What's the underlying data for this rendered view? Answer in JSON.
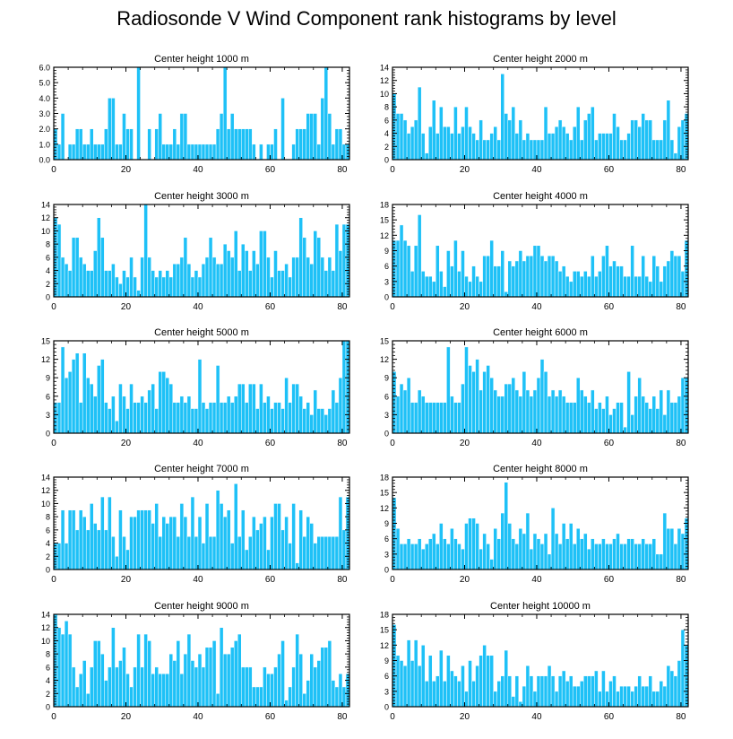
{
  "title": "Radiosonde V Wind Component rank histograms by level",
  "colors": {
    "bar_fill": "#1ec1f7",
    "bar_stroke": "#ffffff",
    "axis": "#000000"
  },
  "chart_data": [
    {
      "type": "bar",
      "title": "Center height 1000 m",
      "xlabel": "",
      "ylabel": "",
      "xlim": [
        0,
        82
      ],
      "ylim": [
        0,
        6
      ],
      "xticks": [
        "0",
        "20",
        "40",
        "60",
        "80"
      ],
      "yticks": [
        "0.0",
        "1.0",
        "2.0",
        "3.0",
        "4.0",
        "5.0",
        "6.0"
      ],
      "values": [
        2,
        1,
        3,
        0,
        1,
        1,
        2,
        2,
        1,
        1,
        2,
        1,
        1,
        1,
        2,
        4,
        4,
        1,
        1,
        3,
        2,
        2,
        0,
        6,
        0,
        0,
        2,
        0,
        2,
        3,
        1,
        1,
        1,
        2,
        1,
        3,
        3,
        1,
        1,
        1,
        1,
        1,
        1,
        1,
        1,
        2,
        3,
        6,
        2,
        3,
        2,
        2,
        2,
        2,
        2,
        1,
        0,
        1,
        0,
        1,
        1,
        2,
        0,
        4,
        0,
        0,
        1,
        2,
        2,
        2,
        3,
        3,
        3,
        1,
        4,
        6,
        3,
        1,
        2,
        2,
        1,
        1
      ]
    },
    {
      "type": "bar",
      "title": "Center height 2000 m",
      "xlabel": "",
      "ylabel": "",
      "xlim": [
        0,
        82
      ],
      "ylim": [
        0,
        14
      ],
      "xticks": [
        "0",
        "20",
        "40",
        "60",
        "80"
      ],
      "yticks": [
        "0",
        "2",
        "4",
        "6",
        "8",
        "10",
        "12",
        "14"
      ],
      "values": [
        10,
        7,
        7,
        6,
        4,
        5,
        6,
        11,
        4,
        1,
        5,
        9,
        4,
        8,
        5,
        5,
        4,
        8,
        4,
        5,
        8,
        5,
        4,
        3,
        6,
        3,
        3,
        4,
        5,
        3,
        13,
        7,
        6,
        8,
        4,
        6,
        3,
        4,
        3,
        3,
        3,
        3,
        8,
        4,
        4,
        5,
        6,
        5,
        4,
        3,
        5,
        8,
        3,
        6,
        7,
        8,
        3,
        4,
        4,
        4,
        4,
        7,
        5,
        3,
        3,
        4,
        6,
        6,
        5,
        7,
        6,
        6,
        3,
        3,
        3,
        6,
        9,
        3,
        1,
        5,
        6,
        7
      ]
    },
    {
      "type": "bar",
      "title": "Center height 3000 m",
      "xlabel": "",
      "ylabel": "",
      "xlim": [
        0,
        82
      ],
      "ylim": [
        0,
        14
      ],
      "xticks": [
        "0",
        "20",
        "40",
        "60",
        "80"
      ],
      "yticks": [
        "0",
        "2",
        "4",
        "6",
        "8",
        "10",
        "12",
        "14"
      ],
      "values": [
        12,
        11,
        6,
        5,
        4,
        9,
        9,
        6,
        5,
        4,
        4,
        7,
        12,
        9,
        4,
        4,
        5,
        3,
        2,
        4,
        3,
        6,
        3,
        1,
        6,
        14,
        6,
        4,
        3,
        4,
        3,
        4,
        3,
        5,
        5,
        6,
        9,
        5,
        3,
        4,
        3,
        5,
        6,
        9,
        6,
        5,
        5,
        8,
        7,
        6,
        10,
        4,
        8,
        7,
        4,
        7,
        5,
        10,
        10,
        6,
        3,
        7,
        4,
        4,
        5,
        3,
        6,
        6,
        12,
        9,
        6,
        5,
        10,
        9,
        6,
        4,
        6,
        4,
        11,
        7,
        11,
        11
      ]
    },
    {
      "type": "bar",
      "title": "Center height 4000 m",
      "xlabel": "",
      "ylabel": "",
      "xlim": [
        0,
        82
      ],
      "ylim": [
        0,
        18
      ],
      "xticks": [
        "0",
        "20",
        "40",
        "60",
        "80"
      ],
      "yticks": [
        "0",
        "3",
        "6",
        "9",
        "12",
        "15",
        "18"
      ],
      "values": [
        11,
        11,
        14,
        11,
        10,
        5,
        10,
        16,
        5,
        4,
        4,
        3,
        10,
        5,
        2,
        9,
        6,
        11,
        5,
        9,
        4,
        3,
        6,
        4,
        3,
        8,
        8,
        11,
        6,
        6,
        9,
        1,
        7,
        6,
        7,
        9,
        7,
        8,
        8,
        10,
        10,
        8,
        7,
        8,
        8,
        7,
        5,
        6,
        4,
        3,
        5,
        5,
        4,
        5,
        4,
        8,
        4,
        5,
        8,
        10,
        6,
        7,
        6,
        6,
        4,
        4,
        10,
        4,
        4,
        8,
        4,
        3,
        8,
        6,
        3,
        6,
        7,
        9,
        8,
        8,
        5,
        11
      ]
    },
    {
      "type": "bar",
      "title": "Center height 5000 m",
      "xlabel": "",
      "ylabel": "",
      "xlim": [
        0,
        82
      ],
      "ylim": [
        0,
        15
      ],
      "xticks": [
        "0",
        "20",
        "40",
        "60",
        "80"
      ],
      "yticks": [
        "0",
        "3",
        "6",
        "9",
        "12",
        "15"
      ],
      "values": [
        5,
        5,
        14,
        9,
        10,
        12,
        13,
        5,
        13,
        9,
        8,
        6,
        11,
        12,
        5,
        4,
        6,
        2,
        8,
        6,
        4,
        8,
        5,
        5,
        6,
        5,
        7,
        8,
        4,
        10,
        10,
        9,
        8,
        5,
        5,
        6,
        5,
        6,
        4,
        4,
        12,
        5,
        4,
        5,
        5,
        11,
        5,
        5,
        6,
        5,
        6,
        8,
        8,
        5,
        8,
        8,
        4,
        8,
        5,
        6,
        4,
        5,
        5,
        4,
        9,
        5,
        8,
        8,
        6,
        4,
        5,
        3,
        7,
        4,
        4,
        3,
        4,
        7,
        5,
        9,
        15,
        15
      ]
    },
    {
      "type": "bar",
      "title": "Center height 6000 m",
      "xlabel": "",
      "ylabel": "",
      "xlim": [
        0,
        82
      ],
      "ylim": [
        0,
        15
      ],
      "xticks": [
        "0",
        "20",
        "40",
        "60",
        "80"
      ],
      "yticks": [
        "0",
        "3",
        "6",
        "9",
        "12",
        "15"
      ],
      "values": [
        10,
        6,
        8,
        7,
        9,
        5,
        5,
        7,
        6,
        5,
        5,
        5,
        5,
        5,
        5,
        14,
        6,
        5,
        5,
        8,
        14,
        11,
        10,
        12,
        7,
        10,
        11,
        9,
        7,
        6,
        6,
        8,
        8,
        9,
        7,
        6,
        10,
        7,
        6,
        7,
        9,
        12,
        10,
        6,
        7,
        6,
        7,
        6,
        5,
        5,
        5,
        9,
        7,
        6,
        5,
        7,
        4,
        5,
        4,
        6,
        3,
        4,
        5,
        5,
        1,
        10,
        3,
        6,
        9,
        6,
        5,
        4,
        6,
        4,
        7,
        3,
        7,
        5,
        5,
        6,
        9,
        9
      ]
    },
    {
      "type": "bar",
      "title": "Center height 7000 m",
      "xlabel": "",
      "ylabel": "",
      "xlim": [
        0,
        82
      ],
      "ylim": [
        0,
        14
      ],
      "xticks": [
        "0",
        "20",
        "40",
        "60",
        "80"
      ],
      "yticks": [
        "0",
        "2",
        "4",
        "6",
        "8",
        "10",
        "12",
        "14"
      ],
      "values": [
        4,
        4,
        9,
        4,
        9,
        9,
        6,
        9,
        8,
        6,
        10,
        7,
        6,
        11,
        6,
        11,
        5,
        2,
        9,
        5,
        3,
        8,
        8,
        9,
        9,
        9,
        9,
        7,
        10,
        5,
        8,
        7,
        8,
        8,
        5,
        10,
        8,
        5,
        11,
        5,
        8,
        4,
        10,
        5,
        5,
        12,
        10,
        8,
        9,
        4,
        13,
        5,
        9,
        3,
        5,
        8,
        6,
        7,
        8,
        3,
        8,
        10,
        10,
        6,
        8,
        4,
        10,
        1,
        9,
        5,
        8,
        7,
        4,
        5,
        5,
        5,
        5,
        5,
        5,
        11,
        6,
        11
      ]
    },
    {
      "type": "bar",
      "title": "Center height 8000 m",
      "xlabel": "",
      "ylabel": "",
      "xlim": [
        0,
        82
      ],
      "ylim": [
        0,
        18
      ],
      "xticks": [
        "0",
        "20",
        "40",
        "60",
        "80"
      ],
      "yticks": [
        "0",
        "3",
        "6",
        "9",
        "12",
        "15",
        "18"
      ],
      "values": [
        14,
        8,
        5,
        5,
        6,
        5,
        5,
        6,
        4,
        5,
        6,
        7,
        5,
        9,
        6,
        5,
        8,
        6,
        5,
        4,
        9,
        10,
        10,
        9,
        4,
        7,
        5,
        2,
        8,
        6,
        11,
        17,
        9,
        6,
        5,
        8,
        7,
        11,
        4,
        7,
        6,
        5,
        7,
        3,
        12,
        7,
        5,
        9,
        6,
        9,
        5,
        8,
        6,
        7,
        4,
        6,
        5,
        5,
        6,
        5,
        5,
        6,
        7,
        5,
        5,
        6,
        6,
        5,
        5,
        6,
        5,
        5,
        6,
        3,
        3,
        11,
        8,
        8,
        5,
        8,
        7,
        10
      ]
    },
    {
      "type": "bar",
      "title": "Center height 9000 m",
      "xlabel": "",
      "ylabel": "",
      "xlim": [
        0,
        82
      ],
      "ylim": [
        0,
        14
      ],
      "xticks": [
        "0",
        "20",
        "40",
        "60",
        "80"
      ],
      "yticks": [
        "0",
        "2",
        "4",
        "6",
        "8",
        "10",
        "12",
        "14"
      ],
      "values": [
        14,
        12,
        11,
        13,
        11,
        6,
        3,
        5,
        7,
        2,
        6,
        10,
        10,
        8,
        4,
        6,
        12,
        6,
        7,
        9,
        5,
        3,
        6,
        11,
        6,
        11,
        10,
        5,
        6,
        5,
        5,
        5,
        8,
        7,
        10,
        5,
        8,
        11,
        7,
        6,
        8,
        6,
        9,
        9,
        10,
        2,
        12,
        8,
        8,
        9,
        10,
        11,
        6,
        6,
        6,
        3,
        3,
        3,
        6,
        5,
        5,
        6,
        8,
        10,
        1,
        3,
        6,
        11,
        8,
        2,
        4,
        8,
        6,
        7,
        9,
        9,
        10,
        4,
        3,
        5,
        3,
        5
      ]
    },
    {
      "type": "bar",
      "title": "Center height 10000 m",
      "xlabel": "",
      "ylabel": "",
      "xlim": [
        0,
        82
      ],
      "ylim": [
        0,
        18
      ],
      "xticks": [
        "0",
        "20",
        "40",
        "60",
        "80"
      ],
      "yticks": [
        "0",
        "3",
        "6",
        "9",
        "12",
        "15",
        "18"
      ],
      "values": [
        16,
        10,
        9,
        8,
        13,
        9,
        13,
        8,
        12,
        5,
        10,
        5,
        6,
        11,
        5,
        10,
        7,
        6,
        5,
        8,
        3,
        9,
        5,
        8,
        10,
        12,
        10,
        10,
        3,
        5,
        6,
        11,
        6,
        2,
        6,
        1,
        4,
        8,
        6,
        3,
        6,
        6,
        6,
        8,
        6,
        3,
        6,
        7,
        5,
        6,
        4,
        4,
        5,
        6,
        6,
        6,
        7,
        3,
        7,
        3,
        5,
        6,
        3,
        4,
        4,
        4,
        3,
        4,
        6,
        4,
        4,
        6,
        3,
        3,
        5,
        4,
        8,
        7,
        6,
        9,
        15,
        12
      ]
    }
  ]
}
